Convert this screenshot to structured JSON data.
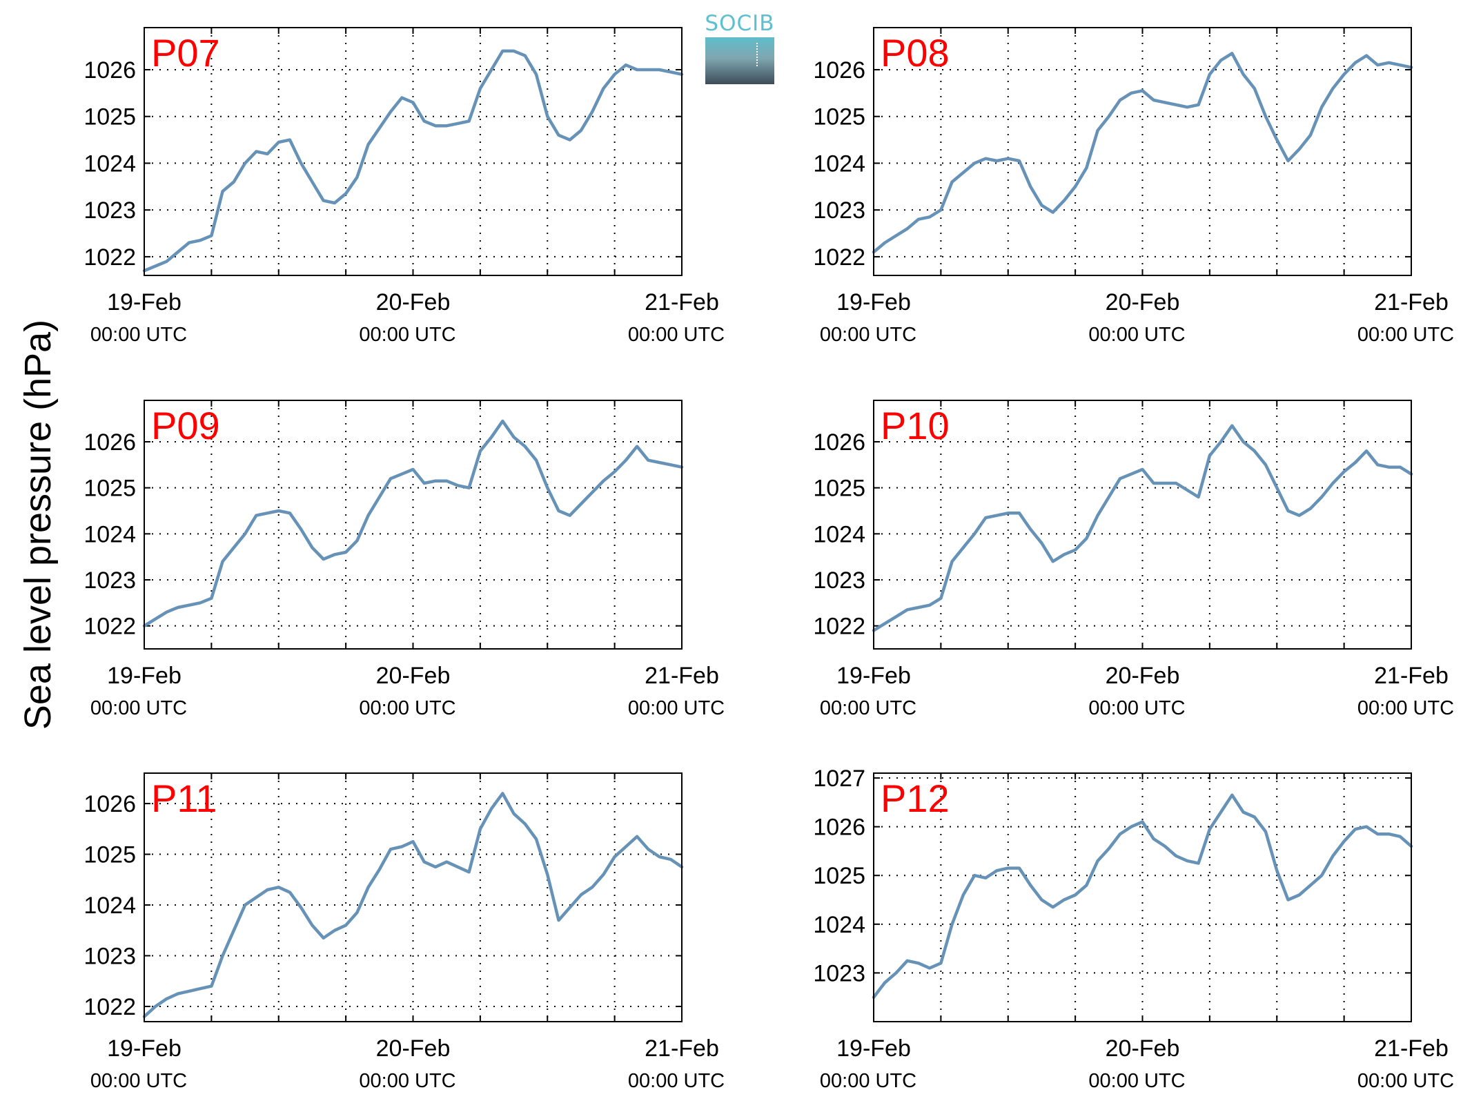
{
  "figure": {
    "ylabel": "Sea level pressure (hPa)",
    "logo_text": "SOCIB",
    "line_color": "#6592b6",
    "label_color": "#ff0000",
    "x_tick_labels": [
      {
        "date": "19-Feb",
        "time": "00:00 UTC"
      },
      {
        "date": "20-Feb",
        "time": "00:00 UTC"
      },
      {
        "date": "21-Feb",
        "time": "00:00 UTC"
      }
    ]
  },
  "chart_data": [
    {
      "type": "line",
      "title": "P07",
      "xlim_hours": [
        0,
        48
      ],
      "ylim": [
        1021.6,
        1026.9
      ],
      "yticks": [
        1022,
        1023,
        1024,
        1025,
        1026
      ],
      "grid": true,
      "x_hours": [
        0,
        1,
        2,
        3,
        4,
        5,
        6,
        7,
        8,
        9,
        10,
        11,
        12,
        13,
        14,
        15,
        16,
        17,
        18,
        19,
        20,
        21,
        22,
        23,
        24,
        25,
        26,
        27,
        28,
        29,
        30,
        31,
        32,
        33,
        34,
        35,
        36,
        37,
        38,
        39,
        40,
        41,
        42,
        43,
        44,
        45,
        46,
        47,
        48
      ],
      "y": [
        1021.7,
        1021.8,
        1021.9,
        1022.1,
        1022.3,
        1022.35,
        1022.45,
        1023.4,
        1023.6,
        1024.0,
        1024.25,
        1024.2,
        1024.45,
        1024.5,
        1024.0,
        1023.6,
        1023.2,
        1023.15,
        1023.35,
        1023.7,
        1024.4,
        1024.75,
        1025.1,
        1025.4,
        1025.3,
        1024.9,
        1024.8,
        1024.8,
        1024.85,
        1024.9,
        1025.6,
        1026.0,
        1026.4,
        1026.4,
        1026.3,
        1025.9,
        1025.0,
        1024.6,
        1024.5,
        1024.7,
        1025.1,
        1025.6,
        1025.9,
        1026.1,
        1026.0,
        1026.0,
        1026.0,
        1025.95,
        1025.9
      ]
    },
    {
      "type": "line",
      "title": "P08",
      "xlim_hours": [
        0,
        48
      ],
      "ylim": [
        1021.6,
        1026.9
      ],
      "yticks": [
        1022,
        1023,
        1024,
        1025,
        1026
      ],
      "grid": true,
      "x_hours": [
        0,
        1,
        2,
        3,
        4,
        5,
        6,
        7,
        8,
        9,
        10,
        11,
        12,
        13,
        14,
        15,
        16,
        17,
        18,
        19,
        20,
        21,
        22,
        23,
        24,
        25,
        26,
        27,
        28,
        29,
        30,
        31,
        32,
        33,
        34,
        35,
        36,
        37,
        38,
        39,
        40,
        41,
        42,
        43,
        44,
        45,
        46,
        47,
        48
      ],
      "y": [
        1022.1,
        1022.3,
        1022.45,
        1022.6,
        1022.8,
        1022.85,
        1023.0,
        1023.6,
        1023.8,
        1024.0,
        1024.1,
        1024.05,
        1024.1,
        1024.05,
        1023.5,
        1023.1,
        1022.95,
        1023.2,
        1023.5,
        1023.9,
        1024.7,
        1025.0,
        1025.35,
        1025.5,
        1025.55,
        1025.35,
        1025.3,
        1025.25,
        1025.2,
        1025.25,
        1025.9,
        1026.2,
        1026.35,
        1025.9,
        1025.6,
        1025.0,
        1024.5,
        1024.05,
        1024.3,
        1024.6,
        1025.2,
        1025.6,
        1025.9,
        1026.15,
        1026.3,
        1026.1,
        1026.15,
        1026.1,
        1026.05
      ]
    },
    {
      "type": "line",
      "title": "P09",
      "xlim_hours": [
        0,
        48
      ],
      "ylim": [
        1021.5,
        1026.9
      ],
      "yticks": [
        1022,
        1023,
        1024,
        1025,
        1026
      ],
      "grid": true,
      "x_hours": [
        0,
        1,
        2,
        3,
        4,
        5,
        6,
        7,
        8,
        9,
        10,
        11,
        12,
        13,
        14,
        15,
        16,
        17,
        18,
        19,
        20,
        21,
        22,
        23,
        24,
        25,
        26,
        27,
        28,
        29,
        30,
        31,
        32,
        33,
        34,
        35,
        36,
        37,
        38,
        39,
        40,
        41,
        42,
        43,
        44,
        45,
        46,
        47,
        48
      ],
      "y": [
        1022.0,
        1022.15,
        1022.3,
        1022.4,
        1022.45,
        1022.5,
        1022.6,
        1023.4,
        1023.7,
        1024.0,
        1024.4,
        1024.45,
        1024.5,
        1024.45,
        1024.1,
        1023.7,
        1023.45,
        1023.55,
        1023.6,
        1023.85,
        1024.4,
        1024.8,
        1025.2,
        1025.3,
        1025.4,
        1025.1,
        1025.15,
        1025.15,
        1025.05,
        1025.0,
        1025.8,
        1026.1,
        1026.45,
        1026.1,
        1025.9,
        1025.6,
        1025.0,
        1024.5,
        1024.4,
        1024.65,
        1024.9,
        1025.15,
        1025.35,
        1025.6,
        1025.9,
        1025.6,
        1025.55,
        1025.5,
        1025.45
      ]
    },
    {
      "type": "line",
      "title": "P10",
      "xlim_hours": [
        0,
        48
      ],
      "ylim": [
        1021.5,
        1026.9
      ],
      "yticks": [
        1022,
        1023,
        1024,
        1025,
        1026
      ],
      "grid": true,
      "x_hours": [
        0,
        1,
        2,
        3,
        4,
        5,
        6,
        7,
        8,
        9,
        10,
        11,
        12,
        13,
        14,
        15,
        16,
        17,
        18,
        19,
        20,
        21,
        22,
        23,
        24,
        25,
        26,
        27,
        28,
        29,
        30,
        31,
        32,
        33,
        34,
        35,
        36,
        37,
        38,
        39,
        40,
        41,
        42,
        43,
        44,
        45,
        46,
        47,
        48
      ],
      "y": [
        1021.9,
        1022.05,
        1022.2,
        1022.35,
        1022.4,
        1022.45,
        1022.6,
        1023.4,
        1023.7,
        1024.0,
        1024.35,
        1024.4,
        1024.45,
        1024.45,
        1024.1,
        1023.8,
        1023.4,
        1023.55,
        1023.65,
        1023.9,
        1024.4,
        1024.8,
        1025.2,
        1025.3,
        1025.4,
        1025.1,
        1025.1,
        1025.1,
        1024.95,
        1024.8,
        1025.7,
        1026.0,
        1026.35,
        1026.0,
        1025.8,
        1025.5,
        1025.0,
        1024.5,
        1024.4,
        1024.55,
        1024.8,
        1025.1,
        1025.35,
        1025.55,
        1025.8,
        1025.5,
        1025.45,
        1025.45,
        1025.3
      ]
    },
    {
      "type": "line",
      "title": "P11",
      "xlim_hours": [
        0,
        48
      ],
      "ylim": [
        1021.7,
        1026.6
      ],
      "yticks": [
        1022,
        1023,
        1024,
        1025,
        1026
      ],
      "grid": true,
      "x_hours": [
        0,
        1,
        2,
        3,
        4,
        5,
        6,
        7,
        8,
        9,
        10,
        11,
        12,
        13,
        14,
        15,
        16,
        17,
        18,
        19,
        20,
        21,
        22,
        23,
        24,
        25,
        26,
        27,
        28,
        29,
        30,
        31,
        32,
        33,
        34,
        35,
        36,
        37,
        38,
        39,
        40,
        41,
        42,
        43,
        44,
        45,
        46,
        47,
        48
      ],
      "y": [
        1021.8,
        1022.0,
        1022.15,
        1022.25,
        1022.3,
        1022.35,
        1022.4,
        1023.0,
        1023.5,
        1024.0,
        1024.15,
        1024.3,
        1024.35,
        1024.25,
        1023.95,
        1023.6,
        1023.35,
        1023.5,
        1023.6,
        1023.85,
        1024.35,
        1024.7,
        1025.1,
        1025.15,
        1025.25,
        1024.85,
        1024.75,
        1024.85,
        1024.75,
        1024.65,
        1025.5,
        1025.9,
        1026.2,
        1025.8,
        1025.6,
        1025.3,
        1024.6,
        1023.7,
        1023.95,
        1024.2,
        1024.35,
        1024.6,
        1024.95,
        1025.15,
        1025.35,
        1025.1,
        1024.95,
        1024.9,
        1024.75
      ]
    },
    {
      "type": "line",
      "title": "P12",
      "xlim_hours": [
        0,
        48
      ],
      "ylim": [
        1022.0,
        1027.1
      ],
      "yticks": [
        1023,
        1024,
        1025,
        1026,
        1027
      ],
      "grid": true,
      "x_hours": [
        0,
        1,
        2,
        3,
        4,
        5,
        6,
        7,
        8,
        9,
        10,
        11,
        12,
        13,
        14,
        15,
        16,
        17,
        18,
        19,
        20,
        21,
        22,
        23,
        24,
        25,
        26,
        27,
        28,
        29,
        30,
        31,
        32,
        33,
        34,
        35,
        36,
        37,
        38,
        39,
        40,
        41,
        42,
        43,
        44,
        45,
        46,
        47,
        48
      ],
      "y": [
        1022.5,
        1022.8,
        1023.0,
        1023.25,
        1023.2,
        1023.1,
        1023.2,
        1024.0,
        1024.6,
        1025.0,
        1024.95,
        1025.1,
        1025.15,
        1025.15,
        1024.8,
        1024.5,
        1024.35,
        1024.5,
        1024.6,
        1024.8,
        1025.3,
        1025.55,
        1025.85,
        1026.0,
        1026.1,
        1025.75,
        1025.6,
        1025.4,
        1025.3,
        1025.25,
        1025.95,
        1026.3,
        1026.65,
        1026.3,
        1026.2,
        1025.9,
        1025.1,
        1024.5,
        1024.6,
        1024.8,
        1025.0,
        1025.4,
        1025.7,
        1025.95,
        1026.0,
        1025.85,
        1025.85,
        1025.8,
        1025.6
      ]
    }
  ]
}
